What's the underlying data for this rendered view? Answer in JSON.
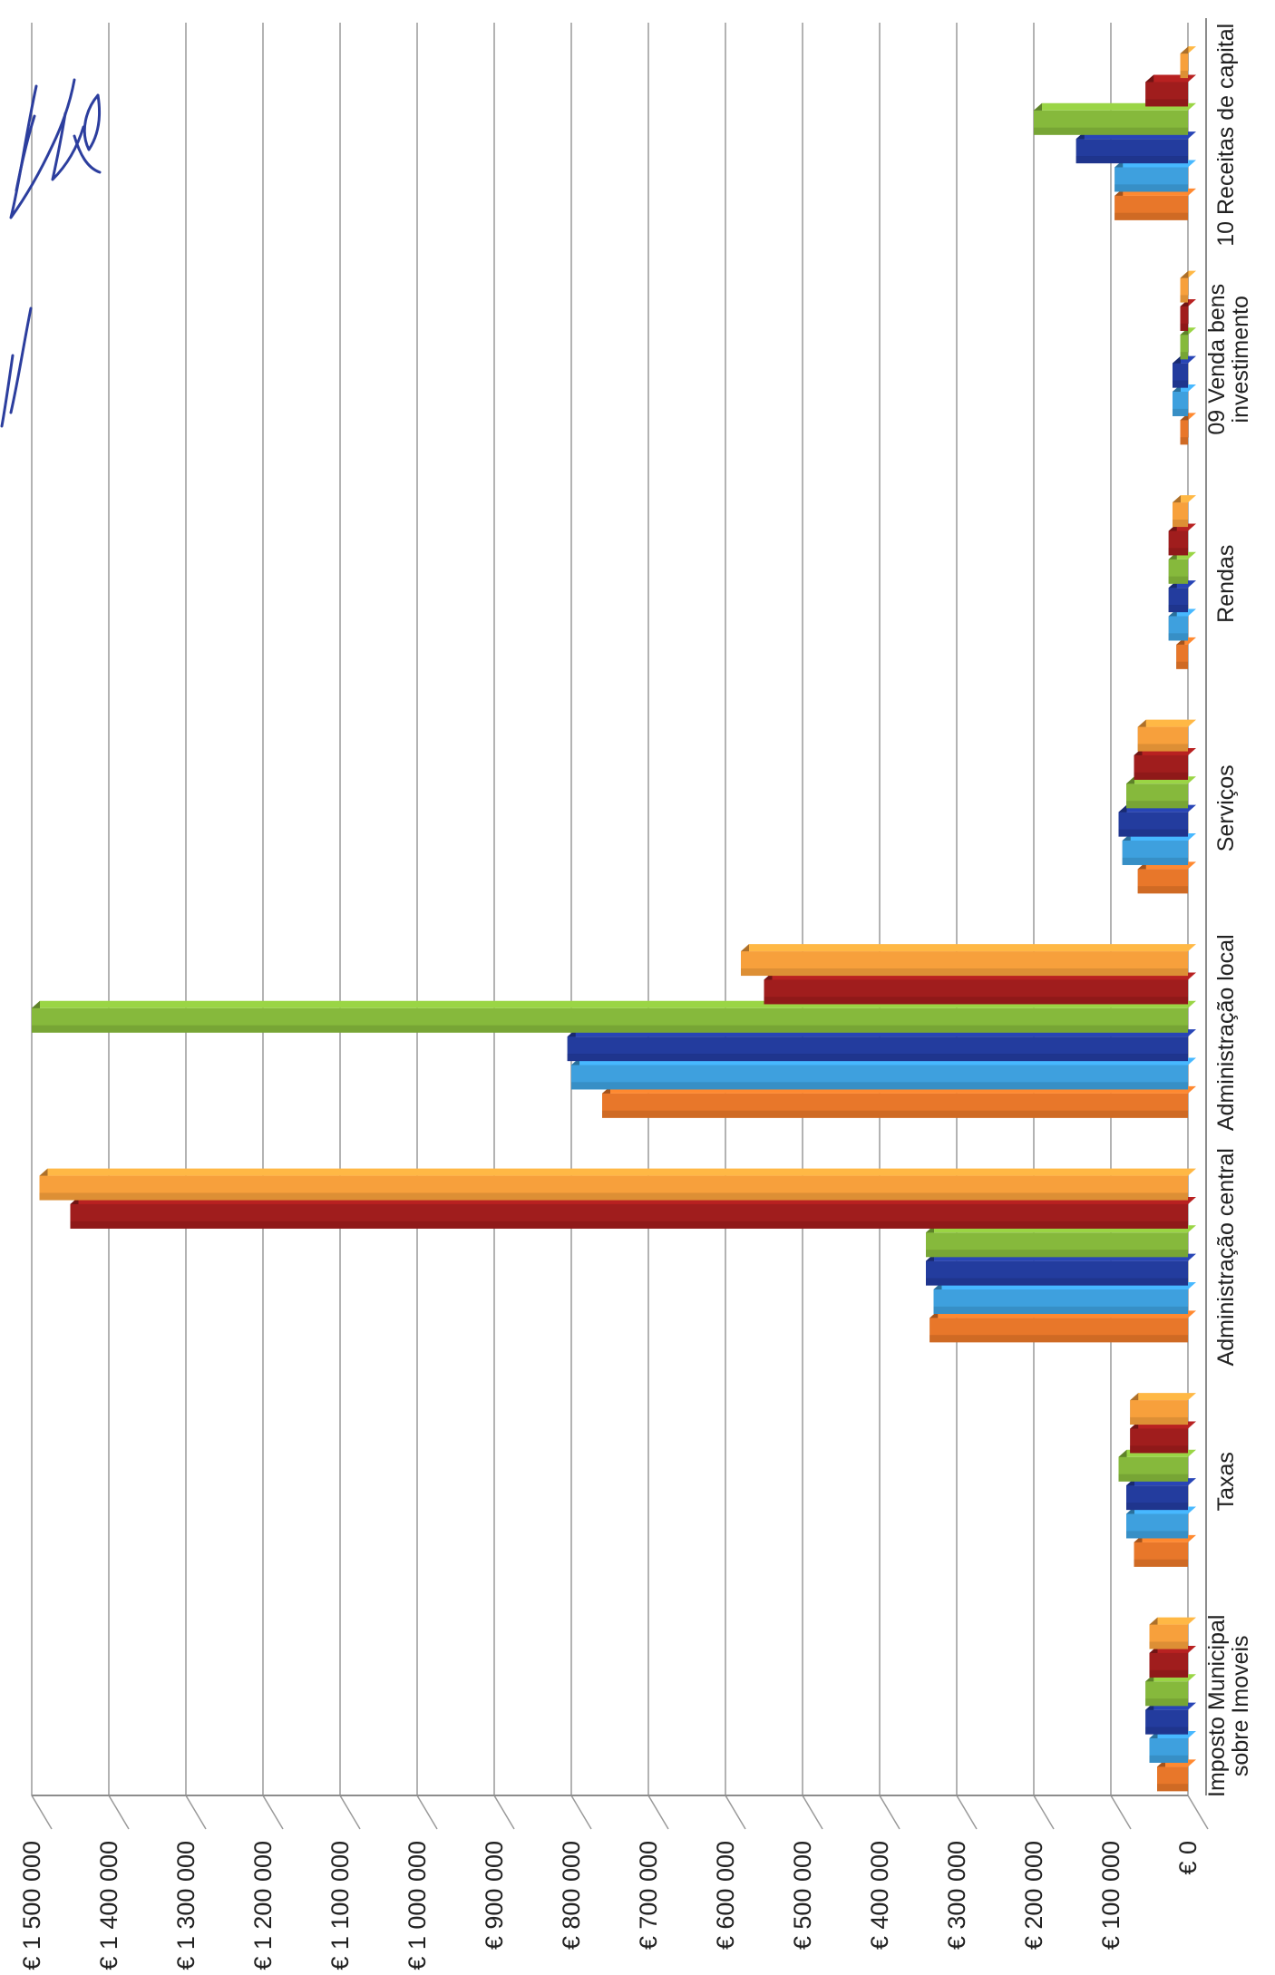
{
  "chart_data": {
    "type": "bar",
    "orientation": "rotated-90-clockwise",
    "title": "",
    "xlabel": "",
    "ylabel": "",
    "ylim": [
      0,
      1500000
    ],
    "y_ticks": [
      0,
      100000,
      200000,
      300000,
      400000,
      500000,
      600000,
      700000,
      800000,
      900000,
      1000000,
      1100000,
      1200000,
      1300000,
      1400000,
      1500000
    ],
    "y_tick_labels": [
      "€ 0",
      "€ 100 000",
      "€ 200 000",
      "€ 300 000",
      "€ 400 000",
      "€ 500 000",
      "€ 600 000",
      "€ 700 000",
      "€ 800 000",
      "€ 900 000",
      "€ 1 000 000",
      "€ 1 100 000",
      "€ 1 200 000",
      "€ 1 300 000",
      "€ 1 400 000",
      "€ 1 500 000"
    ],
    "categories": [
      [
        "Imposto Municipal",
        "sobre Imoveis"
      ],
      [
        "Taxas"
      ],
      [
        "Administração central"
      ],
      [
        "Administração local"
      ],
      [
        "Serviços"
      ],
      [
        "Rendas"
      ],
      [
        "09 Venda bens",
        "investimento"
      ],
      [
        "10 Receitas de capital"
      ]
    ],
    "grid": true,
    "legend": "none",
    "series": [
      {
        "color": "#e8772a",
        "values": [
          40000,
          70000,
          335000,
          760000,
          65000,
          15000,
          10000,
          95000
        ]
      },
      {
        "color": "#3ea0de",
        "values": [
          50000,
          80000,
          330000,
          800000,
          85000,
          25000,
          20000,
          95000
        ]
      },
      {
        "color": "#233c9e",
        "values": [
          55000,
          80000,
          340000,
          805000,
          90000,
          25000,
          20000,
          145000
        ]
      },
      {
        "color": "#86b93c",
        "values": [
          55000,
          90000,
          340000,
          1500000,
          80000,
          25000,
          10000,
          200000
        ]
      },
      {
        "color": "#a01d1d",
        "values": [
          50000,
          75000,
          1450000,
          550000,
          70000,
          25000,
          10000,
          55000
        ]
      },
      {
        "color": "#f7a03c",
        "values": [
          50000,
          75000,
          1490000,
          580000,
          65000,
          20000,
          10000,
          10000
        ]
      }
    ]
  }
}
